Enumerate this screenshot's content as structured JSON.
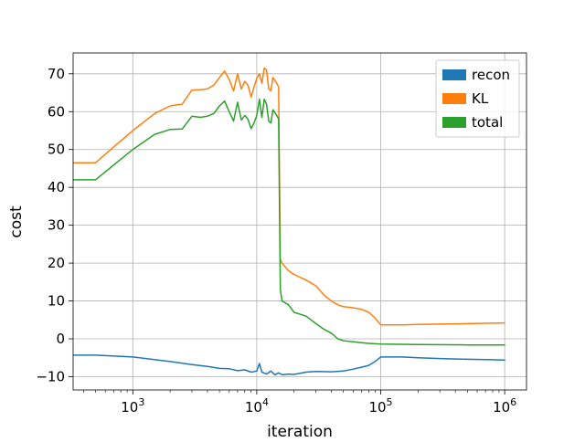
{
  "chart_data": {
    "type": "line",
    "title": "",
    "xlabel": "iteration",
    "ylabel": "cost",
    "xscale": "log",
    "xlim": [
      330,
      1500000
    ],
    "ylim": [
      -13.5,
      75.5
    ],
    "grid": true,
    "legend_position": "top-right",
    "x_ticks": [
      {
        "value": 1000,
        "base": "10",
        "exp": "3"
      },
      {
        "value": 10000,
        "base": "10",
        "exp": "4"
      },
      {
        "value": 100000,
        "base": "10",
        "exp": "5"
      },
      {
        "value": 1000000,
        "base": "10",
        "exp": "6"
      }
    ],
    "y_ticks": [
      {
        "value": -10,
        "label": "−10"
      },
      {
        "value": 0,
        "label": "0"
      },
      {
        "value": 10,
        "label": "10"
      },
      {
        "value": 20,
        "label": "20"
      },
      {
        "value": 30,
        "label": "30"
      },
      {
        "value": 40,
        "label": "40"
      },
      {
        "value": 50,
        "label": "50"
      },
      {
        "value": 60,
        "label": "60"
      },
      {
        "value": 70,
        "label": "70"
      }
    ],
    "series": [
      {
        "name": "recon",
        "color": "#1f77b4",
        "points": [
          [
            330,
            -4.3
          ],
          [
            500,
            -4.3
          ],
          [
            1000,
            -4.8
          ],
          [
            2000,
            -6.0
          ],
          [
            3000,
            -6.8
          ],
          [
            4000,
            -7.3
          ],
          [
            5000,
            -7.8
          ],
          [
            6000,
            -7.9
          ],
          [
            7000,
            -8.4
          ],
          [
            8000,
            -8.2
          ],
          [
            9000,
            -8.8
          ],
          [
            10000,
            -8.5
          ],
          [
            10500,
            -6.5
          ],
          [
            11000,
            -8.8
          ],
          [
            12000,
            -9.3
          ],
          [
            13000,
            -8.5
          ],
          [
            14000,
            -9.5
          ],
          [
            15000,
            -9.0
          ],
          [
            16000,
            -9.5
          ],
          [
            18000,
            -9.3
          ],
          [
            20000,
            -9.4
          ],
          [
            25000,
            -8.8
          ],
          [
            30000,
            -8.6
          ],
          [
            40000,
            -8.7
          ],
          [
            50000,
            -8.5
          ],
          [
            60000,
            -8.0
          ],
          [
            70000,
            -7.5
          ],
          [
            80000,
            -7.0
          ],
          [
            90000,
            -6.0
          ],
          [
            100000,
            -4.8
          ],
          [
            150000,
            -4.8
          ],
          [
            200000,
            -5.0
          ],
          [
            300000,
            -5.2
          ],
          [
            500000,
            -5.4
          ],
          [
            700000,
            -5.5
          ],
          [
            1000000,
            -5.6
          ]
        ]
      },
      {
        "name": "KL",
        "color": "#ff7f0e",
        "points": [
          [
            330,
            46.5
          ],
          [
            500,
            46.5
          ],
          [
            1000,
            55.0
          ],
          [
            1500,
            59.5
          ],
          [
            2000,
            61.5
          ],
          [
            2500,
            62.0
          ],
          [
            3000,
            65.7
          ],
          [
            3500,
            65.8
          ],
          [
            4000,
            66.0
          ],
          [
            4500,
            67.0
          ],
          [
            5000,
            69.0
          ],
          [
            5500,
            70.7
          ],
          [
            6000,
            68.5
          ],
          [
            6500,
            65.5
          ],
          [
            7000,
            70.0
          ],
          [
            7500,
            66.0
          ],
          [
            8000,
            68.0
          ],
          [
            8500,
            67.0
          ],
          [
            9000,
            63.8
          ],
          [
            9500,
            66.5
          ],
          [
            10000,
            68.8
          ],
          [
            10500,
            70.0
          ],
          [
            11000,
            67.5
          ],
          [
            11500,
            71.5
          ],
          [
            12000,
            71.0
          ],
          [
            12500,
            66.0
          ],
          [
            13000,
            65.5
          ],
          [
            13500,
            69.0
          ],
          [
            14500,
            67.5
          ],
          [
            15000,
            66.5
          ],
          [
            15500,
            21.0
          ],
          [
            16000,
            20.0
          ],
          [
            18000,
            18.0
          ],
          [
            20000,
            17.0
          ],
          [
            25000,
            15.5
          ],
          [
            30000,
            14.0
          ],
          [
            35000,
            11.5
          ],
          [
            40000,
            10.0
          ],
          [
            45000,
            9.0
          ],
          [
            50000,
            8.5
          ],
          [
            60000,
            8.2
          ],
          [
            70000,
            7.8
          ],
          [
            80000,
            7.0
          ],
          [
            90000,
            5.5
          ],
          [
            100000,
            3.7
          ],
          [
            150000,
            3.7
          ],
          [
            200000,
            3.8
          ],
          [
            300000,
            3.9
          ],
          [
            500000,
            4.0
          ],
          [
            700000,
            4.1
          ],
          [
            1000000,
            4.2
          ]
        ]
      },
      {
        "name": "total",
        "color": "#2ca02c",
        "points": [
          [
            330,
            42.0
          ],
          [
            500,
            42.0
          ],
          [
            1000,
            50.0
          ],
          [
            1500,
            54.0
          ],
          [
            2000,
            55.3
          ],
          [
            2500,
            55.4
          ],
          [
            3000,
            58.8
          ],
          [
            3500,
            58.5
          ],
          [
            4000,
            58.8
          ],
          [
            4500,
            59.5
          ],
          [
            5000,
            61.5
          ],
          [
            5500,
            62.8
          ],
          [
            6000,
            60.0
          ],
          [
            6500,
            57.5
          ],
          [
            7000,
            62.5
          ],
          [
            7500,
            57.8
          ],
          [
            8000,
            59.0
          ],
          [
            8500,
            58.0
          ],
          [
            9000,
            55.5
          ],
          [
            9500,
            57.0
          ],
          [
            10000,
            59.0
          ],
          [
            10500,
            63.3
          ],
          [
            11000,
            58.5
          ],
          [
            11500,
            63.3
          ],
          [
            12000,
            62.0
          ],
          [
            12500,
            57.5
          ],
          [
            13000,
            57.0
          ],
          [
            13500,
            60.5
          ],
          [
            14500,
            59.0
          ],
          [
            15000,
            58.0
          ],
          [
            15500,
            13.0
          ],
          [
            16000,
            10.0
          ],
          [
            18000,
            9.0
          ],
          [
            20000,
            7.0
          ],
          [
            25000,
            6.0
          ],
          [
            30000,
            4.0
          ],
          [
            35000,
            2.5
          ],
          [
            40000,
            1.5
          ],
          [
            45000,
            0.0
          ],
          [
            50000,
            -0.5
          ],
          [
            60000,
            -0.8
          ],
          [
            70000,
            -1.0
          ],
          [
            80000,
            -1.2
          ],
          [
            100000,
            -1.4
          ],
          [
            200000,
            -1.5
          ],
          [
            500000,
            -1.6
          ],
          [
            1000000,
            -1.6
          ]
        ]
      }
    ]
  }
}
